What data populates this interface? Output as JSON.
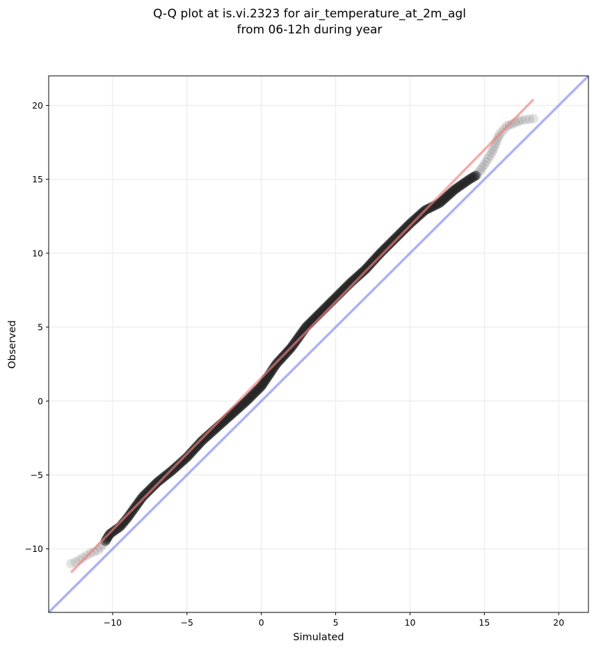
{
  "chart_data": {
    "type": "scatter",
    "title": "Q-Q plot at is.vi.2323 for air_temperature_at_2m_agl",
    "subtitle": "from 06-12h during year",
    "xlabel": "Simulated",
    "ylabel": "Observed",
    "xlim": [
      -14.3,
      22.0
    ],
    "ylim": [
      -14.3,
      22.0
    ],
    "xticks": [
      -10,
      -5,
      0,
      5,
      10,
      15,
      20
    ],
    "yticks": [
      -10,
      -5,
      0,
      5,
      10,
      15,
      20
    ],
    "xtick_labels": [
      "−10",
      "−5",
      "0",
      "5",
      "10",
      "15",
      "20"
    ],
    "ytick_labels": [
      "−10",
      "−5",
      "0",
      "5",
      "10",
      "15",
      "20"
    ],
    "grid": true,
    "point_color": "#222222",
    "quantile_curve": [
      [
        -12.8,
        -11.0
      ],
      [
        -12.5,
        -10.9
      ],
      [
        -12.0,
        -10.6
      ],
      [
        -11.5,
        -10.3
      ],
      [
        -11.0,
        -10.1
      ],
      [
        -10.5,
        -9.5
      ],
      [
        -10.2,
        -9.0
      ],
      [
        -9.5,
        -8.5
      ],
      [
        -9.0,
        -7.9
      ],
      [
        -8.5,
        -7.2
      ],
      [
        -8.0,
        -6.5
      ],
      [
        -7.5,
        -6.0
      ],
      [
        -7.0,
        -5.5
      ],
      [
        -6.0,
        -4.7
      ],
      [
        -5.0,
        -3.8
      ],
      [
        -4.0,
        -2.7
      ],
      [
        -3.0,
        -1.8
      ],
      [
        -2.0,
        -0.9
      ],
      [
        -1.0,
        0.0
      ],
      [
        0.0,
        1.0
      ],
      [
        1.0,
        2.5
      ],
      [
        2.0,
        3.6
      ],
      [
        3.0,
        5.0
      ],
      [
        4.0,
        6.0
      ],
      [
        5.0,
        7.0
      ],
      [
        6.0,
        8.0
      ],
      [
        7.0,
        8.9
      ],
      [
        8.0,
        10.0
      ],
      [
        9.0,
        11.0
      ],
      [
        10.0,
        12.0
      ],
      [
        11.0,
        12.9
      ],
      [
        12.0,
        13.4
      ],
      [
        13.0,
        14.3
      ],
      [
        14.0,
        15.0
      ],
      [
        14.5,
        15.3
      ],
      [
        15.0,
        16.0
      ],
      [
        15.5,
        16.8
      ],
      [
        16.0,
        18.0
      ],
      [
        16.5,
        18.6
      ],
      [
        17.5,
        19.0
      ],
      [
        18.3,
        19.1
      ]
    ],
    "fit_line": {
      "color": "#f08080",
      "from": [
        -12.8,
        -11.6
      ],
      "to": [
        18.3,
        20.4
      ]
    },
    "identity_line": {
      "color": "#8088f0",
      "from": [
        -14.3,
        -14.3
      ],
      "to": [
        22.0,
        22.0
      ]
    }
  }
}
